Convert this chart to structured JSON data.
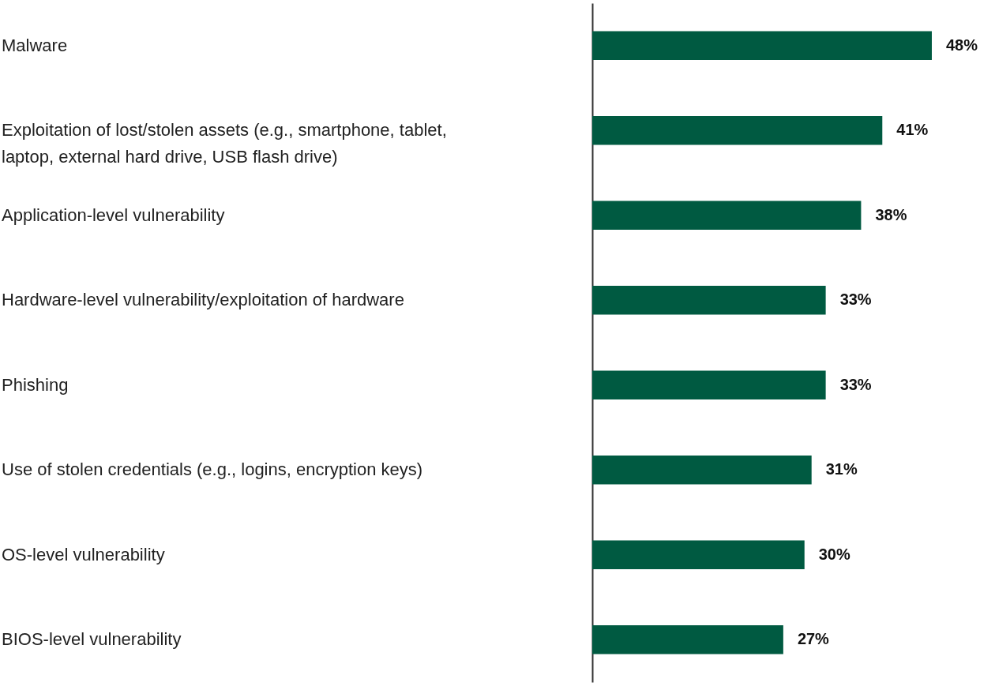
{
  "chart_data": {
    "type": "bar",
    "orientation": "horizontal",
    "color": "#005a41",
    "categories": [
      "Malware",
      "Exploitation of lost/stolen assets (e.g., smartphone, tablet, laptop, external hard drive, USB flash drive)",
      "Application-level vulnerability",
      "Hardware-level vulnerability/exploitation of hardware",
      "Phishing",
      "Use of stolen credentials (e.g., logins, encryption keys)",
      "OS-level vulnerability",
      "BIOS-level vulnerability"
    ],
    "values": [
      48,
      41,
      38,
      33,
      33,
      31,
      30,
      27
    ],
    "value_labels": [
      "48%",
      "41%",
      "38%",
      "33%",
      "33%",
      "31%",
      "30%",
      "27%"
    ]
  }
}
